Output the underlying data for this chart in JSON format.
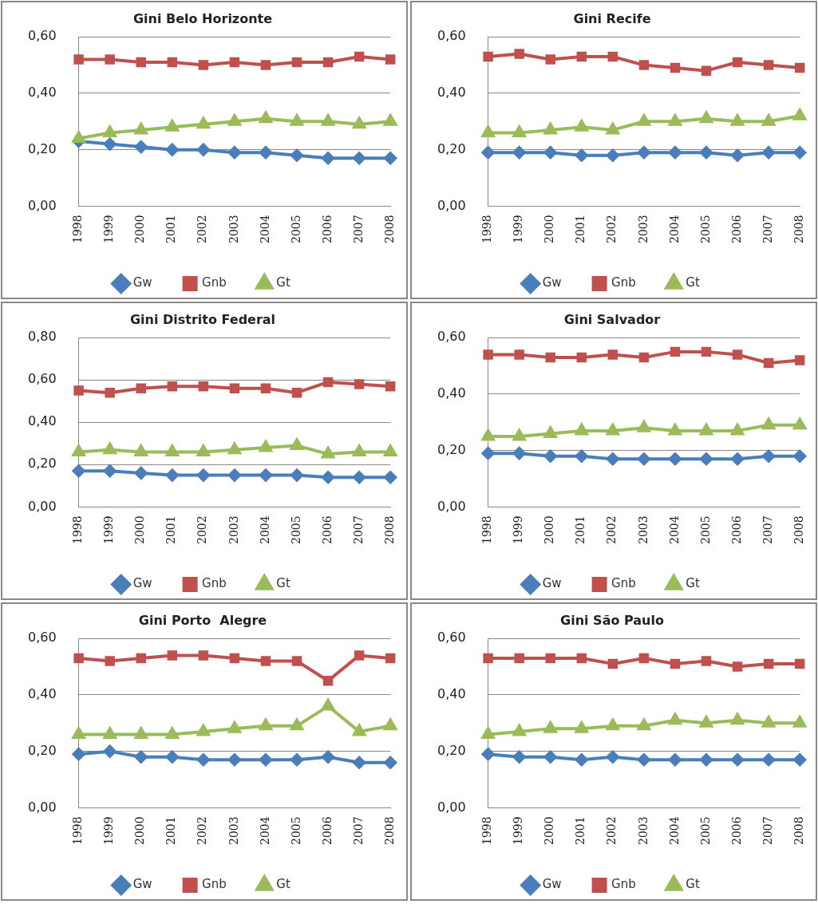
{
  "chart_data": [
    {
      "type": "line",
      "title": "Gini Belo Horizonte",
      "categories": [
        "1998",
        "1999",
        "2000",
        "2001",
        "2002",
        "2003",
        "2004",
        "2005",
        "2006",
        "2007",
        "2008"
      ],
      "ylim": [
        0,
        0.6
      ],
      "yticks": [
        {
          "value": 0,
          "label": "0,00"
        },
        {
          "value": 0.2,
          "label": "0,20"
        },
        {
          "value": 0.4,
          "label": "0,40"
        },
        {
          "value": 0.6,
          "label": "0,60"
        }
      ],
      "grid": "y",
      "legend": "bottom",
      "series": [
        {
          "name": "Gw",
          "color": "#4a7ebb",
          "marker": "diamond",
          "values": [
            0.23,
            0.22,
            0.21,
            0.2,
            0.2,
            0.19,
            0.19,
            0.18,
            0.17,
            0.17,
            0.17
          ]
        },
        {
          "name": "Gnb",
          "color": "#c0504d",
          "marker": "square",
          "values": [
            0.52,
            0.52,
            0.51,
            0.51,
            0.5,
            0.51,
            0.5,
            0.51,
            0.51,
            0.53,
            0.52
          ]
        },
        {
          "name": "Gt",
          "color": "#9bbb59",
          "marker": "triangle",
          "values": [
            0.24,
            0.26,
            0.27,
            0.28,
            0.29,
            0.3,
            0.31,
            0.3,
            0.3,
            0.29,
            0.3
          ]
        }
      ]
    },
    {
      "type": "line",
      "title": "Gini Recife",
      "categories": [
        "1998",
        "1999",
        "2000",
        "2001",
        "2002",
        "2003",
        "2004",
        "2005",
        "2006",
        "2007",
        "2008"
      ],
      "ylim": [
        0,
        0.6
      ],
      "yticks": [
        {
          "value": 0,
          "label": "0,00"
        },
        {
          "value": 0.2,
          "label": "0,20"
        },
        {
          "value": 0.4,
          "label": "0,40"
        },
        {
          "value": 0.6,
          "label": "0,60"
        }
      ],
      "grid": "y",
      "legend": "bottom",
      "series": [
        {
          "name": "Gw",
          "color": "#4a7ebb",
          "marker": "diamond",
          "values": [
            0.19,
            0.19,
            0.19,
            0.18,
            0.18,
            0.19,
            0.19,
            0.19,
            0.18,
            0.19,
            0.19
          ]
        },
        {
          "name": "Gnb",
          "color": "#c0504d",
          "marker": "square",
          "values": [
            0.53,
            0.54,
            0.52,
            0.53,
            0.53,
            0.5,
            0.49,
            0.48,
            0.51,
            0.5,
            0.49
          ]
        },
        {
          "name": "Gt",
          "color": "#9bbb59",
          "marker": "triangle",
          "values": [
            0.26,
            0.26,
            0.27,
            0.28,
            0.27,
            0.3,
            0.3,
            0.31,
            0.3,
            0.3,
            0.32
          ]
        }
      ]
    },
    {
      "type": "line",
      "title": "Gini Distrito Federal",
      "categories": [
        "1998",
        "1999",
        "2000",
        "2001",
        "2002",
        "2003",
        "2004",
        "2005",
        "2006",
        "2007",
        "2008"
      ],
      "ylim": [
        0,
        0.8
      ],
      "yticks": [
        {
          "value": 0,
          "label": "0,00"
        },
        {
          "value": 0.2,
          "label": "0,20"
        },
        {
          "value": 0.4,
          "label": "0,40"
        },
        {
          "value": 0.6,
          "label": "0,60"
        },
        {
          "value": 0.8,
          "label": "0,80"
        }
      ],
      "grid": "y",
      "legend": "bottom",
      "series": [
        {
          "name": "Gw",
          "color": "#4a7ebb",
          "marker": "diamond",
          "values": [
            0.17,
            0.17,
            0.16,
            0.15,
            0.15,
            0.15,
            0.15,
            0.15,
            0.14,
            0.14,
            0.14
          ]
        },
        {
          "name": "Gnb",
          "color": "#c0504d",
          "marker": "square",
          "values": [
            0.55,
            0.54,
            0.56,
            0.57,
            0.57,
            0.56,
            0.56,
            0.54,
            0.59,
            0.58,
            0.57
          ]
        },
        {
          "name": "Gt",
          "color": "#9bbb59",
          "marker": "triangle",
          "values": [
            0.26,
            0.27,
            0.26,
            0.26,
            0.26,
            0.27,
            0.28,
            0.29,
            0.25,
            0.26,
            0.26
          ]
        }
      ]
    },
    {
      "type": "line",
      "title": "Gini Salvador",
      "categories": [
        "1998",
        "1999",
        "2000",
        "2001",
        "2002",
        "2003",
        "2004",
        "2005",
        "2006",
        "2007",
        "2008"
      ],
      "ylim": [
        0,
        0.6
      ],
      "yticks": [
        {
          "value": 0,
          "label": "0,00"
        },
        {
          "value": 0.2,
          "label": "0,20"
        },
        {
          "value": 0.4,
          "label": "0,40"
        },
        {
          "value": 0.6,
          "label": "0,60"
        }
      ],
      "grid": "y",
      "legend": "bottom",
      "series": [
        {
          "name": "Gw",
          "color": "#4a7ebb",
          "marker": "diamond",
          "values": [
            0.19,
            0.19,
            0.18,
            0.18,
            0.17,
            0.17,
            0.17,
            0.17,
            0.17,
            0.18,
            0.18
          ]
        },
        {
          "name": "Gnb",
          "color": "#c0504d",
          "marker": "square",
          "values": [
            0.54,
            0.54,
            0.53,
            0.53,
            0.54,
            0.53,
            0.55,
            0.55,
            0.54,
            0.51,
            0.52
          ]
        },
        {
          "name": "Gt",
          "color": "#9bbb59",
          "marker": "triangle",
          "values": [
            0.25,
            0.25,
            0.26,
            0.27,
            0.27,
            0.28,
            0.27,
            0.27,
            0.27,
            0.29,
            0.29
          ]
        }
      ]
    },
    {
      "type": "line",
      "title": "Gini Porto  Alegre",
      "categories": [
        "1998",
        "1999",
        "2000",
        "2001",
        "2002",
        "2003",
        "2004",
        "2005",
        "2006",
        "2007",
        "2008"
      ],
      "ylim": [
        0,
        0.6
      ],
      "yticks": [
        {
          "value": 0,
          "label": "0,00"
        },
        {
          "value": 0.2,
          "label": "0,20"
        },
        {
          "value": 0.4,
          "label": "0,40"
        },
        {
          "value": 0.6,
          "label": "0,60"
        }
      ],
      "grid": "y",
      "legend": "bottom",
      "series": [
        {
          "name": "Gw",
          "color": "#4a7ebb",
          "marker": "diamond",
          "values": [
            0.19,
            0.2,
            0.18,
            0.18,
            0.17,
            0.17,
            0.17,
            0.17,
            0.18,
            0.16,
            0.16
          ]
        },
        {
          "name": "Gnb",
          "color": "#c0504d",
          "marker": "square",
          "values": [
            0.53,
            0.52,
            0.53,
            0.54,
            0.54,
            0.53,
            0.52,
            0.52,
            0.45,
            0.54,
            0.53
          ]
        },
        {
          "name": "Gt",
          "color": "#9bbb59",
          "marker": "triangle",
          "values": [
            0.26,
            0.26,
            0.26,
            0.26,
            0.27,
            0.28,
            0.29,
            0.29,
            0.36,
            0.27,
            0.29
          ]
        }
      ]
    },
    {
      "type": "line",
      "title": "Gini São Paulo",
      "categories": [
        "1998",
        "1999",
        "2000",
        "2001",
        "2002",
        "2003",
        "2004",
        "2005",
        "2006",
        "2007",
        "2008"
      ],
      "ylim": [
        0,
        0.6
      ],
      "yticks": [
        {
          "value": 0,
          "label": "0,00"
        },
        {
          "value": 0.2,
          "label": "0,20"
        },
        {
          "value": 0.4,
          "label": "0,40"
        },
        {
          "value": 0.6,
          "label": "0,60"
        }
      ],
      "grid": "y",
      "legend": "bottom",
      "series": [
        {
          "name": "Gw",
          "color": "#4a7ebb",
          "marker": "diamond",
          "values": [
            0.19,
            0.18,
            0.18,
            0.17,
            0.18,
            0.17,
            0.17,
            0.17,
            0.17,
            0.17,
            0.17
          ]
        },
        {
          "name": "Gnb",
          "color": "#c0504d",
          "marker": "square",
          "values": [
            0.53,
            0.53,
            0.53,
            0.53,
            0.51,
            0.53,
            0.51,
            0.52,
            0.5,
            0.51,
            0.51
          ]
        },
        {
          "name": "Gt",
          "color": "#9bbb59",
          "marker": "triangle",
          "values": [
            0.26,
            0.27,
            0.28,
            0.28,
            0.29,
            0.29,
            0.31,
            0.3,
            0.31,
            0.3,
            0.3
          ]
        }
      ]
    }
  ]
}
